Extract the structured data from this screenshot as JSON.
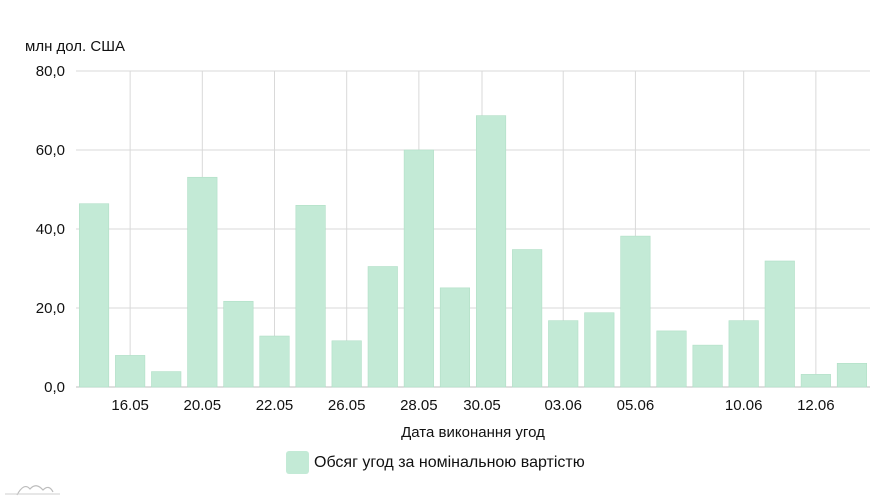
{
  "chart_data": {
    "type": "bar",
    "unit_label": "млн дол. США",
    "xlabel": "Дата виконання угод",
    "ylabel": "",
    "ylim": [
      0,
      80
    ],
    "y_ticks": [
      "0,0",
      "20,0",
      "40,0",
      "60,0",
      "80,0"
    ],
    "x_tick_labels": [
      "16.05",
      "20.05",
      "22.05",
      "26.05",
      "28.05",
      "30.05",
      "03.06",
      "05.06",
      "10.06",
      "12.06"
    ],
    "grid": true,
    "legend_position": "bottom-center",
    "colors": {
      "bar": "#c3ead6",
      "bar_edge": "#b0dfc6",
      "grid": "#d9d9d9",
      "axis": "#bfbfbf"
    },
    "series": [
      {
        "name": "Обсяг угод за номінальною вартістю",
        "values": [
          46.4,
          8.0,
          3.9,
          53.1,
          21.7,
          12.9,
          46.0,
          11.7,
          30.5,
          60.0,
          25.1,
          68.7,
          34.8,
          16.8,
          18.8,
          38.2,
          14.2,
          10.6,
          16.8,
          31.9,
          3.2,
          6.0
        ]
      }
    ]
  }
}
